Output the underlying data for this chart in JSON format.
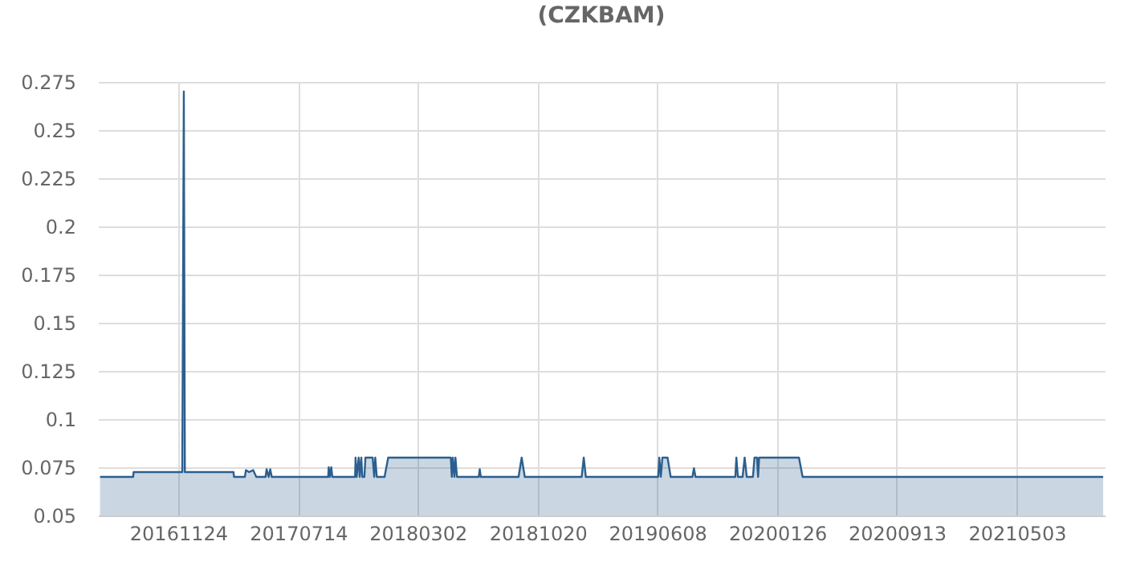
{
  "chart_data": {
    "type": "area",
    "title": "(CZKBAM)",
    "x": [
      "2016-06-26",
      "2016-08-29",
      "2016-08-30",
      "2016-12-02",
      "2016-12-05",
      "2016-12-07",
      "2017-03-11",
      "2017-03-12",
      "2017-04-02",
      "2017-04-04",
      "2017-04-10",
      "2017-04-18",
      "2017-04-24",
      "2017-05-12",
      "2017-05-14",
      "2017-05-18",
      "2017-05-21",
      "2017-05-24",
      "2017-09-10",
      "2017-09-11",
      "2017-09-13",
      "2017-09-16",
      "2017-09-18",
      "2017-11-01",
      "2017-11-02",
      "2017-11-04",
      "2017-11-08",
      "2017-11-10",
      "2017-11-13",
      "2017-11-15",
      "2017-11-19",
      "2017-11-21",
      "2017-12-05",
      "2017-12-08",
      "2017-12-10",
      "2017-12-13",
      "2017-12-28",
      "2018-01-04",
      "2018-05-05",
      "2018-05-07",
      "2018-05-09",
      "2018-05-12",
      "2018-05-14",
      "2018-05-17",
      "2018-06-28",
      "2018-06-30",
      "2018-07-02",
      "2018-09-13",
      "2018-09-19",
      "2018-09-25",
      "2019-01-13",
      "2019-01-17",
      "2019-01-21",
      "2019-06-10",
      "2019-06-12",
      "2019-06-15",
      "2019-06-18",
      "2019-06-28",
      "2019-07-04",
      "2019-08-15",
      "2019-08-18",
      "2019-08-21",
      "2019-11-06",
      "2019-11-08",
      "2019-11-11",
      "2019-11-20",
      "2019-11-24",
      "2019-11-28",
      "2019-12-10",
      "2019-12-13",
      "2019-12-18",
      "2019-12-20",
      "2019-12-22",
      "2020-03-08",
      "2020-03-15",
      "2021-10-17"
    ],
    "series": [
      {
        "color": "#2c5f8e",
        "values": [
          0.07,
          0.07,
          0.0725,
          0.0725,
          0.27,
          0.0725,
          0.0725,
          0.07,
          0.07,
          0.0735,
          0.0725,
          0.0735,
          0.07,
          0.07,
          0.074,
          0.07,
          0.074,
          0.07,
          0.07,
          0.075,
          0.07,
          0.075,
          0.07,
          0.07,
          0.08,
          0.07,
          0.08,
          0.07,
          0.08,
          0.07,
          0.07,
          0.08,
          0.08,
          0.07,
          0.08,
          0.07,
          0.07,
          0.08,
          0.08,
          0.07,
          0.08,
          0.07,
          0.08,
          0.07,
          0.07,
          0.074,
          0.07,
          0.07,
          0.08,
          0.07,
          0.07,
          0.08,
          0.07,
          0.07,
          0.08,
          0.07,
          0.08,
          0.08,
          0.07,
          0.07,
          0.0745,
          0.07,
          0.07,
          0.08,
          0.07,
          0.07,
          0.08,
          0.07,
          0.07,
          0.08,
          0.08,
          0.07,
          0.08,
          0.08,
          0.07,
          0.07
        ]
      }
    ],
    "xlim": [
      "2016-06-22",
      "2021-10-20"
    ],
    "xticks": [
      {
        "value": "2016-11-24",
        "label": "20161124"
      },
      {
        "value": "2017-07-14",
        "label": "20170714"
      },
      {
        "value": "2018-03-02",
        "label": "20180302"
      },
      {
        "value": "2018-10-20",
        "label": "20181020"
      },
      {
        "value": "2019-06-08",
        "label": "20190608"
      },
      {
        "value": "2020-01-26",
        "label": "20200126"
      },
      {
        "value": "2020-09-13",
        "label": "20200913"
      },
      {
        "value": "2021-05-03",
        "label": "20210503"
      }
    ],
    "ylim": [
      0.05,
      0.275
    ],
    "yticks": [
      0.05,
      0.075,
      0.1,
      0.125,
      0.15,
      0.175,
      0.2,
      0.225,
      0.25,
      0.275
    ],
    "grid": true,
    "marker": "none",
    "line_style": "solid"
  }
}
